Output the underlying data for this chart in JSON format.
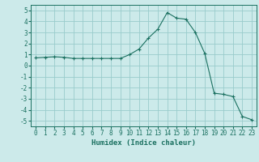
{
  "x": [
    0,
    1,
    2,
    3,
    4,
    5,
    6,
    7,
    8,
    9,
    10,
    11,
    12,
    13,
    14,
    15,
    16,
    17,
    18,
    19,
    20,
    21,
    22,
    23
  ],
  "y": [
    0.7,
    0.75,
    0.8,
    0.75,
    0.65,
    0.65,
    0.65,
    0.65,
    0.65,
    0.65,
    1.0,
    1.5,
    2.5,
    3.3,
    4.8,
    4.3,
    4.2,
    3.0,
    1.1,
    -2.5,
    -2.6,
    -2.8,
    -4.6,
    -4.9
  ],
  "line_color": "#1a7060",
  "marker": "+",
  "marker_size": 3,
  "background_color": "#cceaea",
  "grid_color": "#99cccc",
  "xlabel": "Humidex (Indice chaleur)",
  "xlim": [
    -0.5,
    23.5
  ],
  "ylim": [
    -5.5,
    5.5
  ],
  "yticks": [
    -5,
    -4,
    -3,
    -2,
    -1,
    0,
    1,
    2,
    3,
    4,
    5
  ],
  "xticks": [
    0,
    1,
    2,
    3,
    4,
    5,
    6,
    7,
    8,
    9,
    10,
    11,
    12,
    13,
    14,
    15,
    16,
    17,
    18,
    19,
    20,
    21,
    22,
    23
  ],
  "tick_fontsize": 5.5,
  "xlabel_fontsize": 6.5
}
